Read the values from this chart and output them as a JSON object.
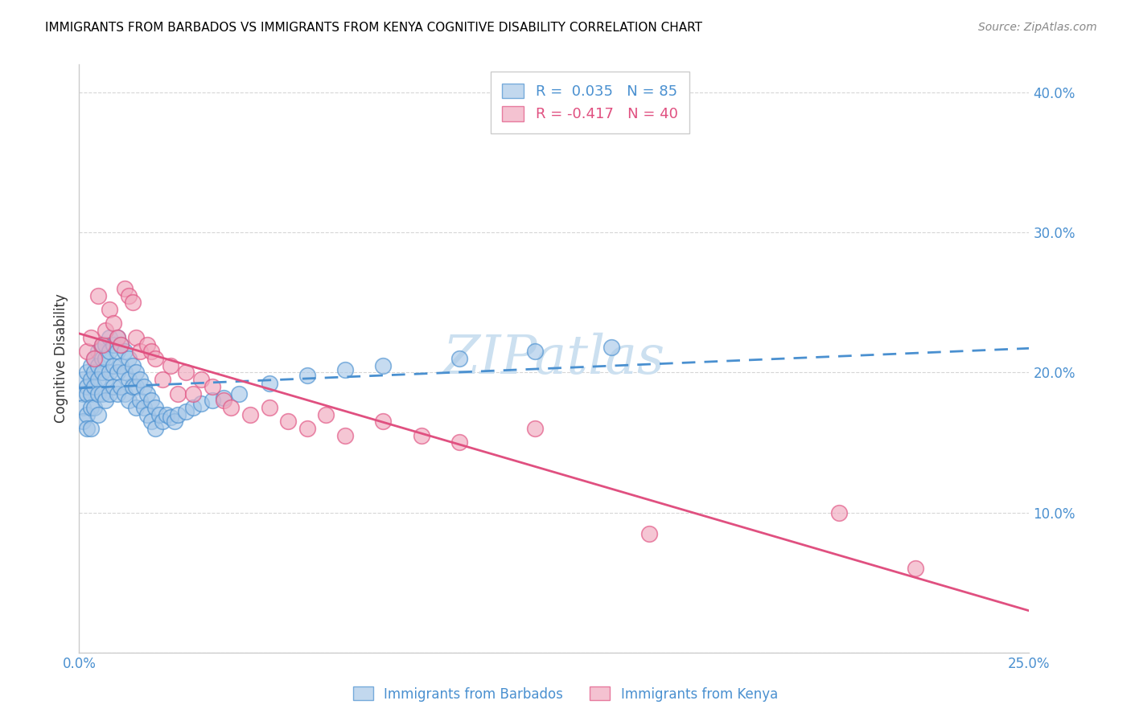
{
  "title": "IMMIGRANTS FROM BARBADOS VS IMMIGRANTS FROM KENYA COGNITIVE DISABILITY CORRELATION CHART",
  "source": "Source: ZipAtlas.com",
  "ylabel": "Cognitive Disability",
  "xlim": [
    0.0,
    0.25
  ],
  "ylim": [
    0.0,
    0.42
  ],
  "ytick_values": [
    0.0,
    0.1,
    0.2,
    0.3,
    0.4
  ],
  "ytick_labels": [
    "",
    "10.0%",
    "20.0%",
    "30.0%",
    "40.0%"
  ],
  "xtick_values": [
    0.0,
    0.05,
    0.1,
    0.15,
    0.2,
    0.25
  ],
  "xtick_labels": [
    "0.0%",
    "",
    "",
    "",
    "",
    "25.0%"
  ],
  "barbados_R": 0.035,
  "barbados_N": 85,
  "kenya_R": -0.417,
  "kenya_N": 40,
  "barbados_color": "#a8c8e8",
  "kenya_color": "#f0a8be",
  "line_barbados_color": "#4a90d0",
  "line_kenya_color": "#e05080",
  "barbados_scatter_x": [
    0.001,
    0.001,
    0.001,
    0.001,
    0.002,
    0.002,
    0.002,
    0.002,
    0.002,
    0.003,
    0.003,
    0.003,
    0.003,
    0.003,
    0.004,
    0.004,
    0.004,
    0.004,
    0.005,
    0.005,
    0.005,
    0.005,
    0.005,
    0.006,
    0.006,
    0.006,
    0.006,
    0.007,
    0.007,
    0.007,
    0.007,
    0.008,
    0.008,
    0.008,
    0.008,
    0.009,
    0.009,
    0.009,
    0.01,
    0.01,
    0.01,
    0.01,
    0.011,
    0.011,
    0.011,
    0.012,
    0.012,
    0.012,
    0.013,
    0.013,
    0.013,
    0.014,
    0.014,
    0.015,
    0.015,
    0.015,
    0.016,
    0.016,
    0.017,
    0.017,
    0.018,
    0.018,
    0.019,
    0.019,
    0.02,
    0.02,
    0.021,
    0.022,
    0.023,
    0.024,
    0.025,
    0.026,
    0.028,
    0.03,
    0.032,
    0.035,
    0.038,
    0.042,
    0.05,
    0.06,
    0.07,
    0.08,
    0.1,
    0.12,
    0.14
  ],
  "barbados_scatter_y": [
    0.195,
    0.185,
    0.175,
    0.165,
    0.2,
    0.19,
    0.185,
    0.17,
    0.16,
    0.205,
    0.195,
    0.185,
    0.175,
    0.16,
    0.21,
    0.2,
    0.19,
    0.175,
    0.215,
    0.205,
    0.195,
    0.185,
    0.17,
    0.22,
    0.21,
    0.2,
    0.185,
    0.22,
    0.21,
    0.195,
    0.18,
    0.225,
    0.215,
    0.2,
    0.185,
    0.22,
    0.205,
    0.19,
    0.225,
    0.215,
    0.2,
    0.185,
    0.22,
    0.205,
    0.19,
    0.215,
    0.2,
    0.185,
    0.21,
    0.195,
    0.18,
    0.205,
    0.19,
    0.2,
    0.19,
    0.175,
    0.195,
    0.18,
    0.19,
    0.175,
    0.185,
    0.17,
    0.18,
    0.165,
    0.175,
    0.16,
    0.17,
    0.165,
    0.17,
    0.168,
    0.165,
    0.17,
    0.172,
    0.175,
    0.178,
    0.18,
    0.182,
    0.185,
    0.192,
    0.198,
    0.202,
    0.205,
    0.21,
    0.215,
    0.218
  ],
  "kenya_scatter_x": [
    0.002,
    0.003,
    0.004,
    0.005,
    0.006,
    0.007,
    0.008,
    0.009,
    0.01,
    0.011,
    0.012,
    0.013,
    0.014,
    0.015,
    0.016,
    0.018,
    0.019,
    0.02,
    0.022,
    0.024,
    0.026,
    0.028,
    0.03,
    0.032,
    0.035,
    0.038,
    0.04,
    0.045,
    0.05,
    0.055,
    0.06,
    0.065,
    0.07,
    0.08,
    0.09,
    0.1,
    0.12,
    0.15,
    0.2,
    0.22
  ],
  "kenya_scatter_y": [
    0.215,
    0.225,
    0.21,
    0.255,
    0.22,
    0.23,
    0.245,
    0.235,
    0.225,
    0.22,
    0.26,
    0.255,
    0.25,
    0.225,
    0.215,
    0.22,
    0.215,
    0.21,
    0.195,
    0.205,
    0.185,
    0.2,
    0.185,
    0.195,
    0.19,
    0.18,
    0.175,
    0.17,
    0.175,
    0.165,
    0.16,
    0.17,
    0.155,
    0.165,
    0.155,
    0.15,
    0.16,
    0.085,
    0.1,
    0.06
  ],
  "background_color": "#ffffff",
  "grid_color": "#cccccc",
  "watermark_text": "ZIPatlas",
  "watermark_color": "#cce0f0",
  "title_fontsize": 11,
  "tick_label_color": "#4a90d0",
  "axis_tick_color": "#cccccc"
}
